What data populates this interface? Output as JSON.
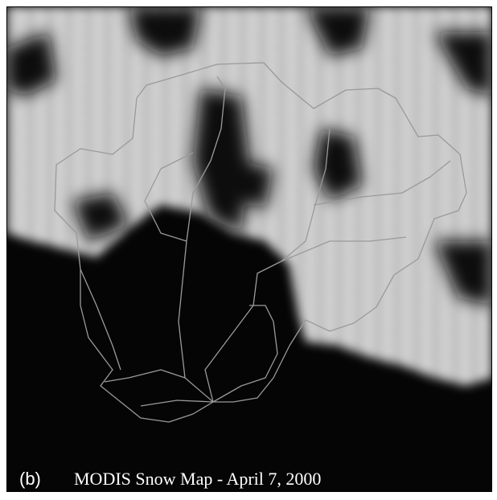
{
  "panel_label": "(b)",
  "caption": "MODIS Snow Map - April 7, 2000"
}
